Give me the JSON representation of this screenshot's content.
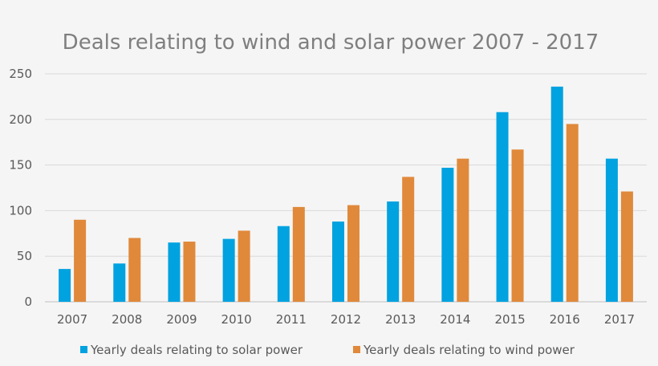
{
  "chart_data": {
    "type": "bar",
    "title": "Deals relating to wind and solar power 2007 - 2017",
    "xlabel": "",
    "ylabel": "",
    "categories": [
      "2007",
      "2008",
      "2009",
      "2010",
      "2011",
      "2012",
      "2013",
      "2014",
      "2015",
      "2016",
      "2017"
    ],
    "series": [
      {
        "name": "Yearly deals relating to solar power",
        "color": "#00a2e0",
        "values": [
          36,
          42,
          65,
          69,
          83,
          88,
          110,
          147,
          208,
          236,
          157
        ]
      },
      {
        "name": "Yearly deals relating to wind power",
        "color": "#e0893b",
        "values": [
          90,
          70,
          66,
          78,
          104,
          106,
          137,
          157,
          167,
          195,
          121
        ]
      }
    ],
    "ylim": [
      0,
      250
    ],
    "yticks": [
      0,
      50,
      100,
      150,
      200,
      250
    ],
    "grid": true,
    "legend_position": "bottom"
  }
}
